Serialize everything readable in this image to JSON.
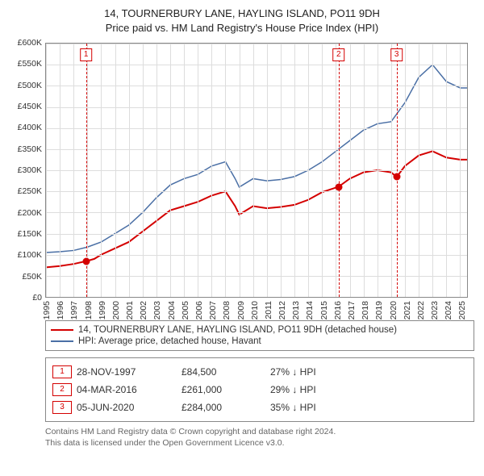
{
  "title": {
    "line1": "14, TOURNERBURY LANE, HAYLING ISLAND, PO11 9DH",
    "line2": "Price paid vs. HM Land Registry's House Price Index (HPI)"
  },
  "chart": {
    "type": "line",
    "background_color": "#ffffff",
    "grid_color": "#dddddd",
    "axis_color": "#888888",
    "y": {
      "min": 0,
      "max": 600000,
      "step": 50000,
      "labels": [
        "£0",
        "£50K",
        "£100K",
        "£150K",
        "£200K",
        "£250K",
        "£300K",
        "£350K",
        "£400K",
        "£450K",
        "£500K",
        "£550K",
        "£600K"
      ]
    },
    "x": {
      "min": 1995,
      "max": 2025.5,
      "ticks": [
        1995,
        1996,
        1997,
        1998,
        1999,
        2000,
        2001,
        2002,
        2003,
        2004,
        2005,
        2006,
        2007,
        2008,
        2009,
        2010,
        2011,
        2012,
        2013,
        2014,
        2015,
        2016,
        2017,
        2018,
        2019,
        2020,
        2021,
        2022,
        2023,
        2024,
        2025
      ]
    },
    "markers": [
      {
        "n": "1",
        "x": 1997.9,
        "color": "#d40000"
      },
      {
        "n": "2",
        "x": 2016.2,
        "color": "#d40000"
      },
      {
        "n": "3",
        "x": 2020.4,
        "color": "#d40000"
      }
    ],
    "sale_points": [
      {
        "x": 1997.9,
        "y": 84500,
        "color": "#d40000"
      },
      {
        "x": 2016.2,
        "y": 261000,
        "color": "#d40000"
      },
      {
        "x": 2020.4,
        "y": 284000,
        "color": "#d40000"
      }
    ],
    "series": [
      {
        "name": "price_paid",
        "label": "14, TOURNERBURY LANE, HAYLING ISLAND, PO11 9DH (detached house)",
        "color": "#d40000",
        "width": 2,
        "points": [
          [
            1995,
            70000
          ],
          [
            1996,
            73000
          ],
          [
            1997,
            78000
          ],
          [
            1997.9,
            84500
          ],
          [
            1998.5,
            90000
          ],
          [
            1999,
            100000
          ],
          [
            2000,
            115000
          ],
          [
            2001,
            130000
          ],
          [
            2002,
            155000
          ],
          [
            2003,
            180000
          ],
          [
            2004,
            205000
          ],
          [
            2005,
            215000
          ],
          [
            2006,
            225000
          ],
          [
            2007,
            240000
          ],
          [
            2008,
            250000
          ],
          [
            2008.7,
            215000
          ],
          [
            2009,
            195000
          ],
          [
            2010,
            215000
          ],
          [
            2011,
            210000
          ],
          [
            2012,
            213000
          ],
          [
            2013,
            218000
          ],
          [
            2014,
            230000
          ],
          [
            2015,
            248000
          ],
          [
            2016.2,
            261000
          ],
          [
            2017,
            280000
          ],
          [
            2018,
            295000
          ],
          [
            2019,
            300000
          ],
          [
            2020,
            295000
          ],
          [
            2020.4,
            284000
          ],
          [
            2021,
            310000
          ],
          [
            2022,
            335000
          ],
          [
            2023,
            345000
          ],
          [
            2024,
            330000
          ],
          [
            2025,
            325000
          ],
          [
            2025.5,
            325000
          ]
        ]
      },
      {
        "name": "hpi",
        "label": "HPI: Average price, detached house, Havant",
        "color": "#4a6fa5",
        "width": 1.5,
        "points": [
          [
            1995,
            105000
          ],
          [
            1996,
            107000
          ],
          [
            1997,
            110000
          ],
          [
            1998,
            118000
          ],
          [
            1999,
            130000
          ],
          [
            2000,
            150000
          ],
          [
            2001,
            170000
          ],
          [
            2002,
            200000
          ],
          [
            2003,
            235000
          ],
          [
            2004,
            265000
          ],
          [
            2005,
            280000
          ],
          [
            2006,
            290000
          ],
          [
            2007,
            310000
          ],
          [
            2008,
            320000
          ],
          [
            2008.7,
            280000
          ],
          [
            2009,
            260000
          ],
          [
            2010,
            280000
          ],
          [
            2011,
            275000
          ],
          [
            2012,
            278000
          ],
          [
            2013,
            285000
          ],
          [
            2014,
            300000
          ],
          [
            2015,
            320000
          ],
          [
            2016,
            345000
          ],
          [
            2017,
            370000
          ],
          [
            2018,
            395000
          ],
          [
            2019,
            410000
          ],
          [
            2020,
            415000
          ],
          [
            2021,
            460000
          ],
          [
            2022,
            520000
          ],
          [
            2023,
            550000
          ],
          [
            2024,
            510000
          ],
          [
            2025,
            495000
          ],
          [
            2025.5,
            495000
          ]
        ]
      }
    ]
  },
  "legend": {
    "rows": [
      {
        "label": "14, TOURNERBURY LANE, HAYLING ISLAND, PO11 9DH (detached house)",
        "color": "#d40000"
      },
      {
        "label": "HPI: Average price, detached house, Havant",
        "color": "#4a6fa5"
      }
    ]
  },
  "sales": {
    "rows": [
      {
        "n": "1",
        "date": "28-NOV-1997",
        "price": "£84,500",
        "delta": "27% ↓ HPI",
        "color": "#d40000"
      },
      {
        "n": "2",
        "date": "04-MAR-2016",
        "price": "£261,000",
        "delta": "29% ↓ HPI",
        "color": "#d40000"
      },
      {
        "n": "3",
        "date": "05-JUN-2020",
        "price": "£284,000",
        "delta": "35% ↓ HPI",
        "color": "#d40000"
      }
    ]
  },
  "attribution": {
    "line1": "Contains HM Land Registry data © Crown copyright and database right 2024.",
    "line2": "This data is licensed under the Open Government Licence v3.0."
  }
}
